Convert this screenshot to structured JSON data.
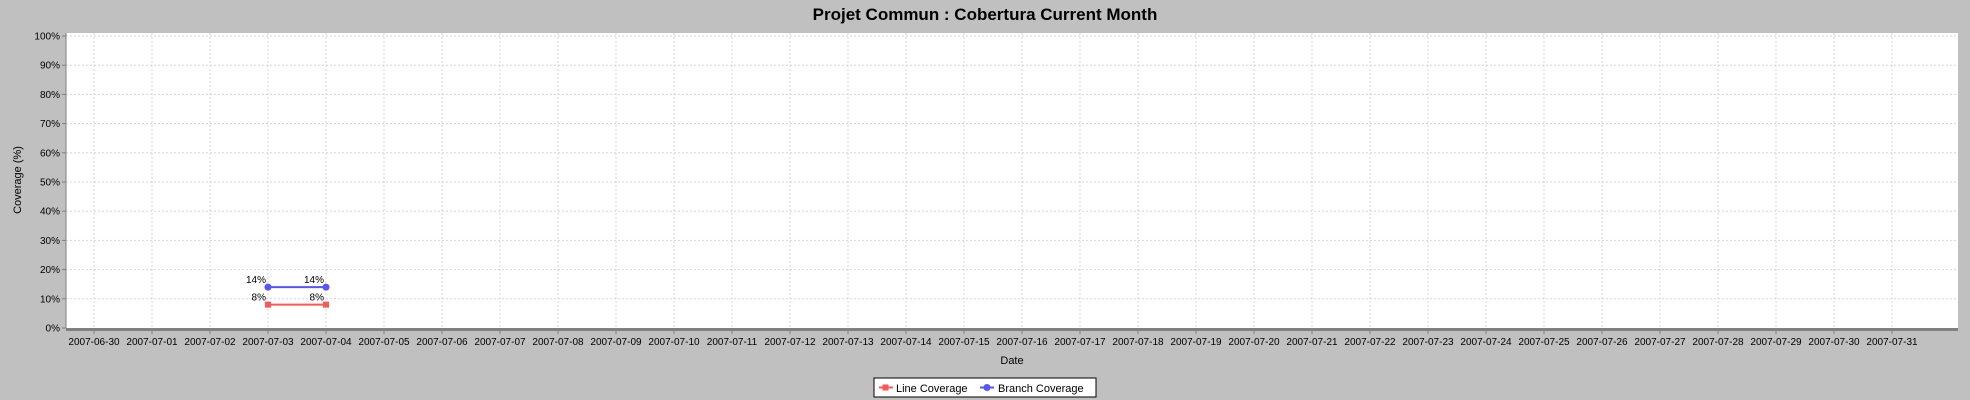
{
  "chart_data": {
    "type": "line",
    "title": "Projet Commun : Cobertura Current Month",
    "xlabel": "Date",
    "ylabel": "Coverage (%)",
    "ylim": [
      0,
      100
    ],
    "y_ticks": [
      "0%",
      "10%",
      "20%",
      "30%",
      "40%",
      "50%",
      "60%",
      "70%",
      "80%",
      "90%",
      "100%"
    ],
    "x_ticks": [
      "2007-06-30",
      "2007-07-01",
      "2007-07-02",
      "2007-07-03",
      "2007-07-04",
      "2007-07-05",
      "2007-07-06",
      "2007-07-07",
      "2007-07-08",
      "2007-07-09",
      "2007-07-10",
      "2007-07-11",
      "2007-07-12",
      "2007-07-13",
      "2007-07-14",
      "2007-07-15",
      "2007-07-16",
      "2007-07-17",
      "2007-07-18",
      "2007-07-19",
      "2007-07-20",
      "2007-07-21",
      "2007-07-22",
      "2007-07-23",
      "2007-07-24",
      "2007-07-25",
      "2007-07-26",
      "2007-07-27",
      "2007-07-28",
      "2007-07-29",
      "2007-07-30",
      "2007-07-31"
    ],
    "grid": true,
    "legend_position": "bottom-center",
    "series": [
      {
        "name": "Line Coverage",
        "color": "#ff5555",
        "marker": "square",
        "points": [
          {
            "x": "2007-07-03",
            "y": 8,
            "label": "8%"
          },
          {
            "x": "2007-07-04",
            "y": 8,
            "label": "8%"
          }
        ]
      },
      {
        "name": "Branch Coverage",
        "color": "#5555ff",
        "marker": "circle",
        "points": [
          {
            "x": "2007-07-03",
            "y": 14,
            "label": "14%"
          },
          {
            "x": "2007-07-04",
            "y": 14,
            "label": "14%"
          }
        ]
      }
    ]
  }
}
